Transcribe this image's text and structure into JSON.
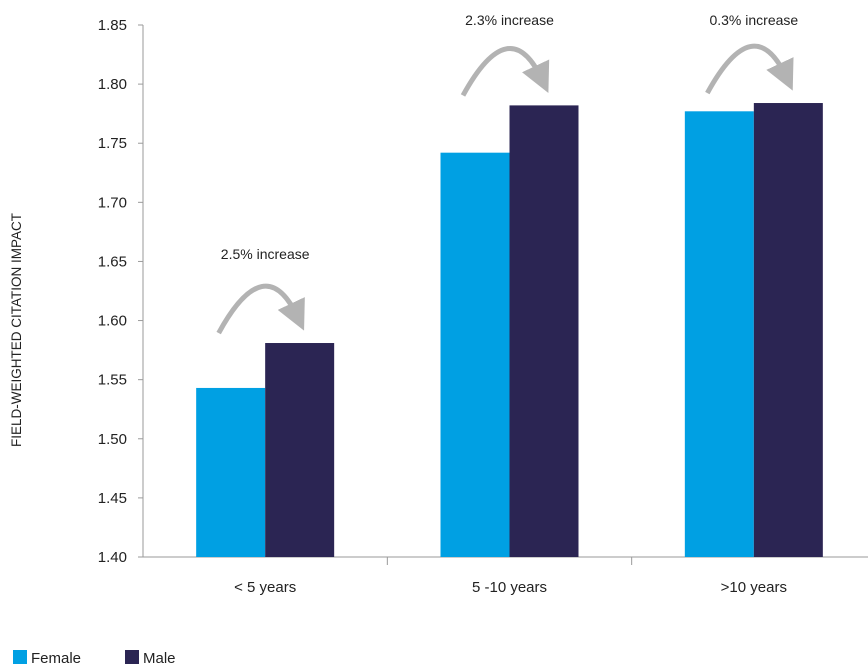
{
  "chart_data": {
    "type": "bar",
    "title": "",
    "xlabel": "",
    "ylabel": "FIELD-WEIGHTED CITATION IMPACT",
    "ylim": [
      1.4,
      1.85
    ],
    "yticks": [
      "1.40",
      "1.45",
      "1.50",
      "1.55",
      "1.60",
      "1.65",
      "1.70",
      "1.75",
      "1.80",
      "1.85"
    ],
    "categories": [
      "< 5 years",
      "5 -10 years",
      ">10 years"
    ],
    "series": [
      {
        "name": "Female",
        "color": "#00A0E3",
        "values": [
          1.543,
          1.742,
          1.777
        ]
      },
      {
        "name": "Male",
        "color": "#2B2553",
        "values": [
          1.581,
          1.782,
          1.784
        ]
      }
    ],
    "annotations": [
      "2.5% increase",
      "2.3%  increase",
      "0.3% increase"
    ],
    "grid": false,
    "legend_position": "bottom-left",
    "arrow_color": "#B3B3B3"
  }
}
